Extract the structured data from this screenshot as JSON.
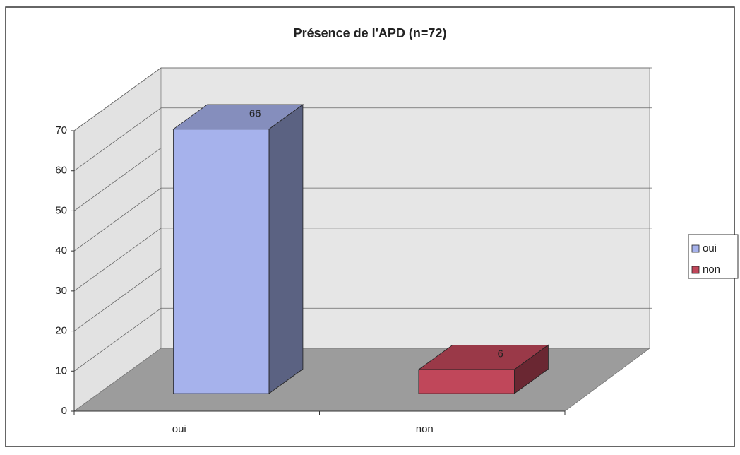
{
  "chart_data": {
    "type": "bar3d",
    "title": "Présence de l'APD (n=72)",
    "categories": [
      "oui",
      "non"
    ],
    "values": [
      66,
      6
    ],
    "colors": [
      "#a6b2ec",
      "#c0475a"
    ],
    "ylim": [
      0,
      70
    ],
    "yticks": [
      0,
      10,
      20,
      30,
      40,
      50,
      60,
      70
    ],
    "grid": true,
    "legend": "right"
  }
}
